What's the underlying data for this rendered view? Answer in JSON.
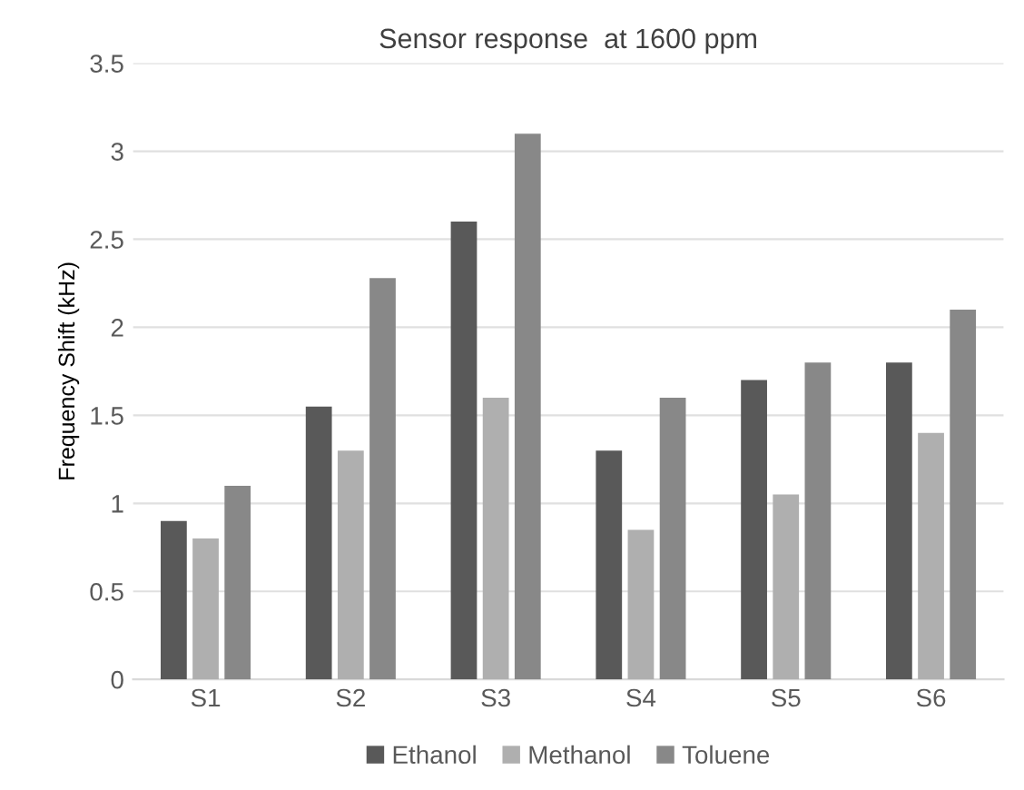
{
  "chart_data": {
    "type": "bar",
    "title": "Sensor response  at 1600 ppm",
    "ylabel": "Frequency Shift (kHz)",
    "categories": [
      "S1",
      "S2",
      "S3",
      "S4",
      "S5",
      "S6"
    ],
    "series": [
      {
        "name": "Ethanol",
        "color": "#595959",
        "values": [
          0.9,
          1.55,
          2.6,
          1.3,
          1.7,
          1.8
        ]
      },
      {
        "name": "Methanol",
        "color": "#afafaf",
        "values": [
          0.8,
          1.3,
          1.6,
          0.85,
          1.05,
          1.4
        ]
      },
      {
        "name": "Toluene",
        "color": "#888888",
        "values": [
          1.1,
          2.28,
          3.1,
          1.6,
          1.8,
          2.1
        ]
      }
    ],
    "ylim": [
      0,
      3.5
    ],
    "yticks": [
      0,
      0.5,
      1,
      1.5,
      2,
      2.5,
      3,
      3.5
    ],
    "grid": "y",
    "legend": "bottom"
  }
}
